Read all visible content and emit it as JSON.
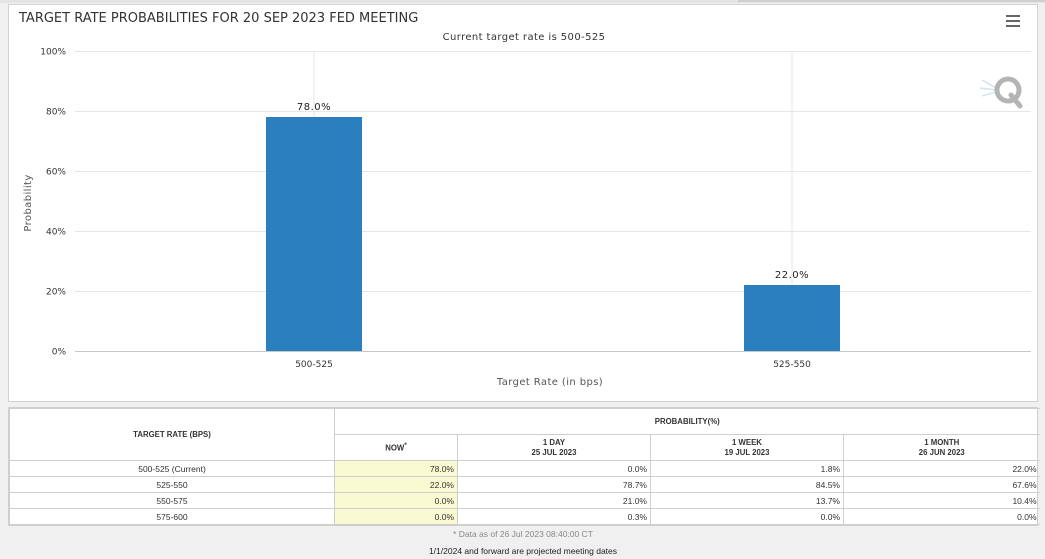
{
  "colors": {
    "bar": "#2a7fbe",
    "now_highlight": "#fafad2",
    "grid": "#e6e6e6"
  },
  "icons": {
    "menu": "hamburger-menu-icon",
    "logo": "q-logo-icon"
  },
  "chart_data": {
    "type": "bar",
    "title": "TARGET RATE PROBABILITIES FOR 20 SEP 2023 FED MEETING",
    "subtitle": "Current target rate is 500-525",
    "categories": [
      "500-525",
      "525-550"
    ],
    "values": [
      78.0,
      22.0
    ],
    "data_labels": [
      "78.0%",
      "22.0%"
    ],
    "xlabel": "Target Rate (in bps)",
    "ylabel": "Probability",
    "ylim": [
      0,
      100
    ],
    "yticks": [
      0,
      20,
      40,
      60,
      80,
      100
    ],
    "ytick_labels": [
      "0%",
      "20%",
      "40%",
      "60%",
      "80%",
      "100%"
    ],
    "grid": true,
    "legend": "none"
  },
  "table": {
    "rate_header": "TARGET RATE (BPS)",
    "prob_header": "PROBABILITY(%)",
    "columns": [
      {
        "line1": "NOW",
        "marker": "*",
        "line2": ""
      },
      {
        "line1": "1 DAY",
        "marker": "",
        "line2": "25 JUL 2023"
      },
      {
        "line1": "1 WEEK",
        "marker": "",
        "line2": "19 JUL 2023"
      },
      {
        "line1": "1 MONTH",
        "marker": "",
        "line2": "26 JUN 2023"
      }
    ],
    "rows": [
      {
        "rate": "500-525 (Current)",
        "values": [
          "78.0%",
          "0.0%",
          "1.8%",
          "22.0%"
        ]
      },
      {
        "rate": "525-550",
        "values": [
          "22.0%",
          "78.7%",
          "84.5%",
          "67.6%"
        ]
      },
      {
        "rate": "550-575",
        "values": [
          "0.0%",
          "21.0%",
          "13.7%",
          "10.4%"
        ]
      },
      {
        "rate": "575-600",
        "values": [
          "0.0%",
          "0.3%",
          "0.0%",
          "0.0%"
        ]
      }
    ]
  },
  "footnotes": {
    "data_as_of": "* Data as of 26 Jul 2023 08:40:00 CT",
    "projected": "1/1/2024 and forward are projected meeting dates"
  }
}
